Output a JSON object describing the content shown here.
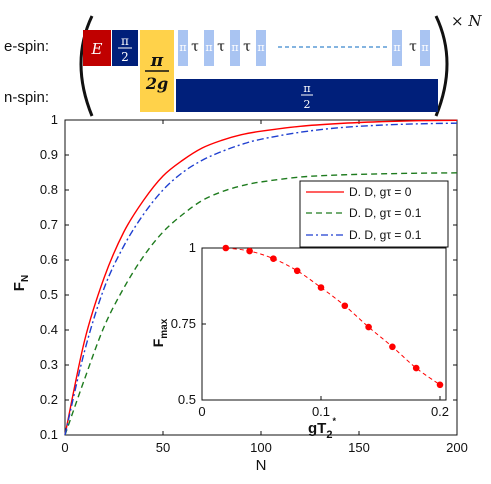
{
  "sequence": {
    "rows": [
      "e-spin:",
      "n-spin:"
    ],
    "repeat_label": "× N",
    "pulses": {
      "e": "E",
      "pi_half": "π\n2",
      "pi_2g": "π\n2g",
      "pi": "π",
      "tau": "τ",
      "n_pi_half": "π\n2"
    },
    "colors": {
      "e_pulse": "#c00000",
      "pi_half_pulse": "#001f7a",
      "pi_2g_pulse": "#ffd24a",
      "pi_pulse": "#a9c4f2",
      "dashes": "#5b9bd5"
    }
  },
  "chart_data": [
    {
      "type": "line",
      "xlabel": "N",
      "ylabel": "F_N",
      "xlim": [
        0,
        200
      ],
      "ylim": [
        0.1,
        1
      ],
      "xticks": [
        "0",
        "50",
        "100",
        "150",
        "200"
      ],
      "yticks": [
        "0.1",
        "0.2",
        "0.3",
        "0.4",
        "0.5",
        "0.6",
        "0.7",
        "0.8",
        "0.9",
        "1"
      ],
      "grid": false,
      "legend_position": "right",
      "series": [
        {
          "name": "D. D, gτ = 0",
          "color": "#ff0000",
          "style": "solid",
          "x": [
            0,
            10,
            20,
            30,
            40,
            50,
            60,
            70,
            80,
            90,
            100,
            120,
            140,
            160,
            180,
            200
          ],
          "y": [
            0.1,
            0.37,
            0.55,
            0.68,
            0.77,
            0.84,
            0.885,
            0.92,
            0.942,
            0.958,
            0.968,
            0.982,
            0.99,
            0.995,
            0.998,
            0.999
          ]
        },
        {
          "name": "D. D, gτ = 0.1",
          "color": "#1e7b1e",
          "style": "dashed",
          "x": [
            0,
            10,
            20,
            30,
            40,
            50,
            60,
            70,
            80,
            90,
            100,
            120,
            140,
            160,
            180,
            200
          ],
          "y": [
            0.1,
            0.26,
            0.41,
            0.52,
            0.61,
            0.68,
            0.73,
            0.77,
            0.795,
            0.812,
            0.823,
            0.837,
            0.843,
            0.846,
            0.848,
            0.849
          ]
        },
        {
          "name": "D. D, gτ = 0.1",
          "color": "#1f3fd0",
          "style": "dashdot",
          "x": [
            0,
            10,
            20,
            30,
            40,
            50,
            60,
            70,
            80,
            90,
            100,
            120,
            140,
            160,
            180,
            200
          ],
          "y": [
            0.1,
            0.34,
            0.52,
            0.64,
            0.73,
            0.8,
            0.85,
            0.885,
            0.91,
            0.93,
            0.945,
            0.965,
            0.978,
            0.985,
            0.989,
            0.991
          ]
        }
      ]
    },
    {
      "type": "scatter",
      "xlabel": "gT2*",
      "ylabel": "Fmax",
      "xlim": [
        0,
        0.2
      ],
      "ylim": [
        0.5,
        1
      ],
      "xticks": [
        "0",
        "0.1",
        "0.2"
      ],
      "yticks": [
        "0.5",
        "0.75",
        "1"
      ],
      "color": "#ff0000",
      "x": [
        0.02,
        0.04,
        0.06,
        0.08,
        0.1,
        0.12,
        0.14,
        0.16,
        0.18,
        0.2
      ],
      "y": [
        1.0,
        0.99,
        0.965,
        0.925,
        0.87,
        0.81,
        0.74,
        0.675,
        0.605,
        0.55
      ]
    }
  ]
}
